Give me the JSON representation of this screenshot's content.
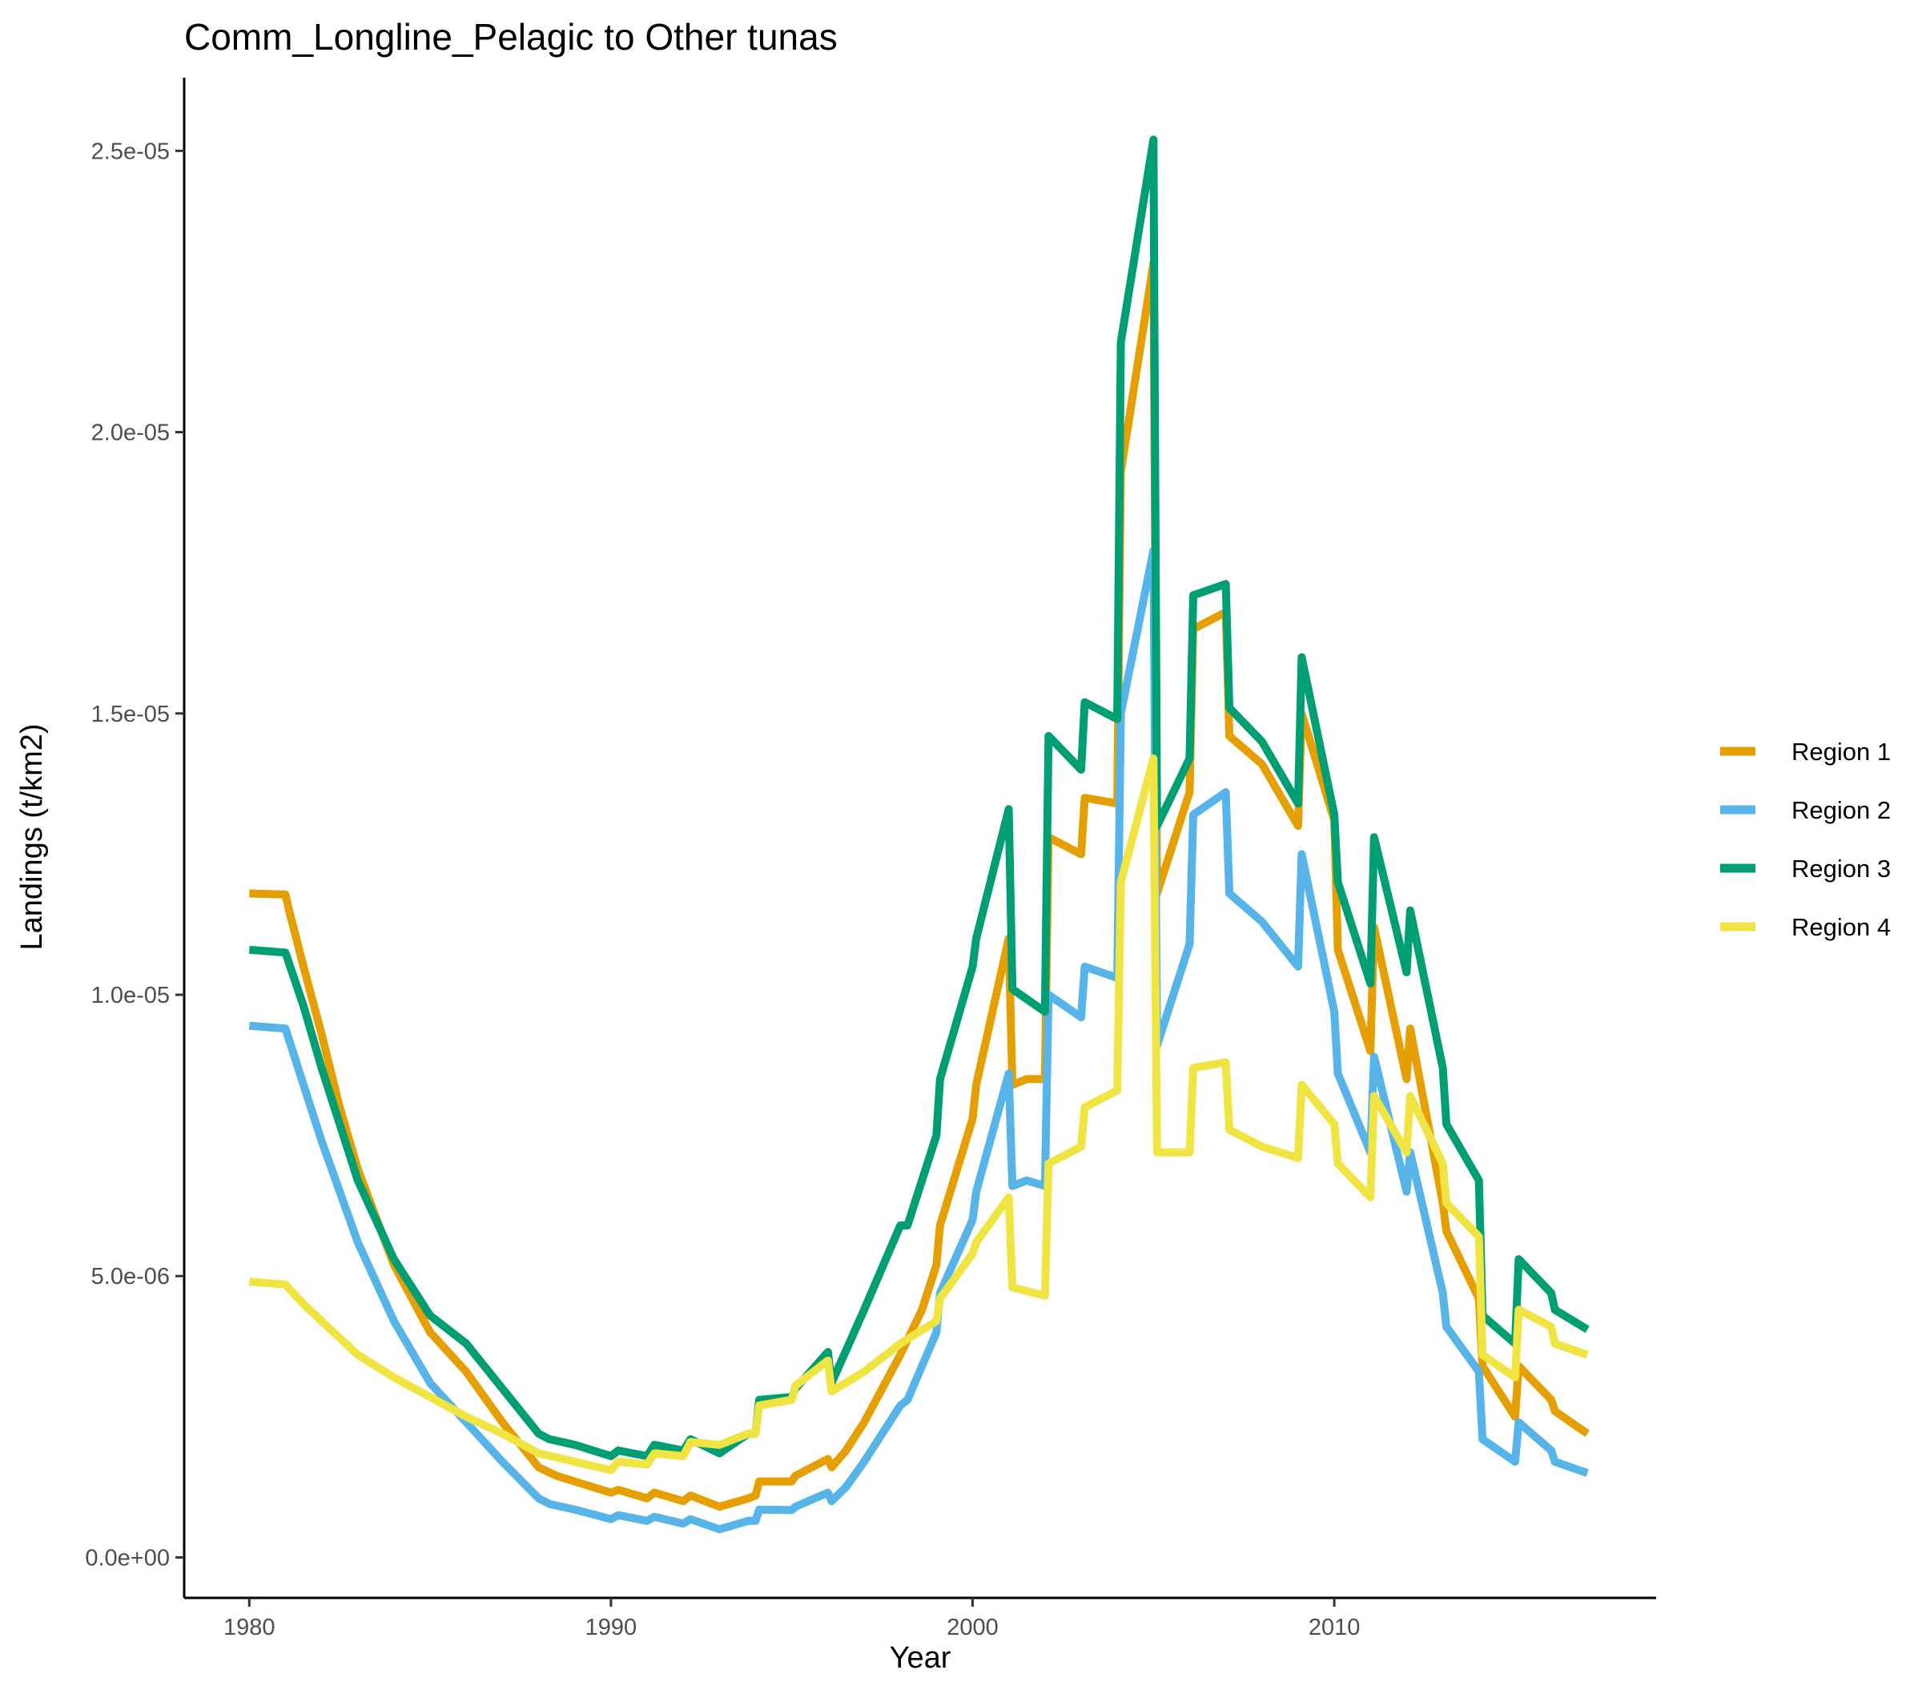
{
  "chart_data": {
    "type": "line",
    "title": "Comm_Longline_Pelagic to Other tunas",
    "xlabel": "Year",
    "ylabel": "Landings (t/km2)",
    "xlim": [
      1978.2,
      2018.9
    ],
    "ylim": [
      -7.2e-07,
      2.63e-05
    ],
    "x_ticks": [
      1980,
      1990,
      2000,
      2010
    ],
    "y_ticks": [
      0,
      5e-06,
      1e-05,
      1.5e-05,
      2e-05,
      2.5e-05
    ],
    "y_tick_labels": [
      "0.0e+00",
      "5.0e-06",
      "1.0e-05",
      "1.5e-05",
      "2.0e-05",
      "2.5e-05"
    ],
    "grid": false,
    "legend_position": "right",
    "x": [
      1980,
      1981,
      1982,
      1983,
      1984,
      1985,
      1986,
      1987,
      1988,
      1989,
      1990,
      1991,
      1992,
      1993,
      1994,
      1995,
      1996,
      1997,
      1998,
      1999,
      2000,
      2001,
      2002,
      2003,
      2004,
      2005,
      2006,
      2007,
      2008,
      2009,
      2010,
      2011,
      2012,
      2013,
      2014,
      2015,
      2016,
      2017
    ],
    "series": [
      {
        "name": "Region 1",
        "color": "#E69F00",
        "x": [
          1980,
          1981,
          1981.1,
          1981.5,
          1982,
          1982.5,
          1983,
          1984,
          1985,
          1986,
          1987,
          1988,
          1988.5,
          1989,
          1990,
          1990.2,
          1991,
          1991.2,
          1992,
          1992.2,
          1993,
          1993.8,
          1994,
          1994.1,
          1995,
          1995.1,
          1996,
          1996.1,
          1996.5,
          1997,
          1997.5,
          1998,
          1998.6,
          1999,
          1999.1,
          2000,
          2000.1,
          2001,
          2001.1,
          2001.5,
          2002,
          2002.1,
          2003,
          2003.1,
          2004,
          2004.1,
          2005,
          2005.1,
          2006,
          2006.1,
          2007,
          2007.1,
          2008,
          2009,
          2009.1,
          2010,
          2010.1,
          2011,
          2011.1,
          2012,
          2012.1,
          2013,
          2013.1,
          2014,
          2014.1,
          2015,
          2015.1,
          2016,
          2016.1,
          2017
        ],
        "values": [
          1.18e-05,
          1.178e-05,
          1.15e-05,
          1.05e-05,
          9.3e-06,
          8e-06,
          6.9e-06,
          5.2e-06,
          4e-06,
          3.3e-06,
          2.4e-06,
          1.6e-06,
          1.45e-06,
          1.35e-06,
          1.15e-06,
          1.2e-06,
          1.05e-06,
          1.15e-06,
          1e-06,
          1.1e-06,
          9e-07,
          1.05e-06,
          1.1e-06,
          1.35e-06,
          1.35e-06,
          1.45e-06,
          1.75e-06,
          1.6e-06,
          1.9e-06,
          2.4e-06,
          3e-06,
          3.6e-06,
          4.4e-06,
          5.2e-06,
          5.9e-06,
          7.8e-06,
          8.4e-06,
          1.1e-05,
          8.4e-06,
          8.5e-06,
          8.5e-06,
          1.28e-05,
          1.25e-05,
          1.35e-05,
          1.34e-05,
          1.93e-05,
          2.3e-05,
          1.18e-05,
          1.36e-05,
          1.65e-05,
          1.68e-05,
          1.46e-05,
          1.41e-05,
          1.3e-05,
          1.5e-05,
          1.31e-05,
          1.08e-05,
          9e-06,
          1.12e-05,
          8.5e-06,
          9.4e-06,
          6.3e-06,
          5.8e-06,
          4.6e-06,
          3.4e-06,
          2.5e-06,
          3.4e-06,
          2.8e-06,
          2.6e-06,
          2.2e-06
        ]
      },
      {
        "name": "Region 2",
        "color": "#56B4E9",
        "x": [
          1980,
          1981,
          1981.5,
          1982,
          1982.5,
          1983,
          1984,
          1985,
          1986,
          1987,
          1988,
          1988.3,
          1989,
          1990,
          1990.2,
          1991,
          1991.2,
          1992,
          1992.2,
          1993,
          1993.8,
          1994,
          1994.1,
          1995,
          1995.1,
          1996,
          1996.1,
          1996.5,
          1997,
          1997.5,
          1998,
          1998.2,
          1999,
          1999.1,
          2000,
          2000.1,
          2001,
          2001.1,
          2001.5,
          2002,
          2002.1,
          2003,
          2003.1,
          2004,
          2004.1,
          2005,
          2005.1,
          2006,
          2006.1,
          2007,
          2007.1,
          2008,
          2009,
          2009.1,
          2010,
          2010.1,
          2011,
          2011.1,
          2012,
          2012.1,
          2013,
          2013.1,
          2014,
          2014.1,
          2015,
          2015.1,
          2016,
          2016.1,
          2017
        ],
        "values": [
          9.45e-06,
          9.4e-06,
          8.4e-06,
          7.4e-06,
          6.5e-06,
          5.6e-06,
          4.2e-06,
          3.1e-06,
          2.4e-06,
          1.7e-06,
          1.05e-06,
          9.5e-07,
          8.5e-07,
          6.8e-07,
          7.5e-07,
          6.5e-07,
          7.2e-07,
          6e-07,
          6.8e-07,
          5e-07,
          6.5e-07,
          6.5e-07,
          8.5e-07,
          8.4e-07,
          9e-07,
          1.15e-06,
          1e-06,
          1.25e-06,
          1.7e-06,
          2.2e-06,
          2.7e-06,
          2.8e-06,
          4e-06,
          4.7e-06,
          6e-06,
          6.5e-06,
          8.6e-06,
          6.6e-06,
          6.7e-06,
          6.6e-06,
          1e-05,
          9.6e-06,
          1.05e-05,
          1.03e-05,
          1.5e-05,
          1.79e-05,
          9.1e-06,
          1.09e-05,
          1.32e-05,
          1.36e-05,
          1.18e-05,
          1.13e-05,
          1.05e-05,
          1.25e-05,
          9.7e-06,
          8.6e-06,
          7.2e-06,
          8.9e-06,
          6.5e-06,
          7.2e-06,
          4.7e-06,
          4.1e-06,
          3.3e-06,
          2.1e-06,
          1.7e-06,
          2.4e-06,
          1.9e-06,
          1.7e-06,
          1.5e-06
        ]
      },
      {
        "name": "Region 3",
        "color": "#009E73",
        "x": [
          1980,
          1981,
          1981.5,
          1982,
          1982.5,
          1983,
          1984,
          1985,
          1986,
          1987,
          1988,
          1988.3,
          1989,
          1990,
          1990.2,
          1991,
          1991.2,
          1992,
          1992.2,
          1993,
          1993.8,
          1994,
          1994.1,
          1995,
          1995.1,
          1996,
          1996.1,
          1997,
          1998,
          1998.2,
          1999,
          1999.1,
          2000,
          2000.1,
          2001,
          2001.1,
          2002,
          2002.1,
          2003,
          2003.1,
          2004,
          2004.1,
          2005,
          2005.1,
          2006,
          2006.1,
          2007,
          2007.1,
          2008,
          2009,
          2009.1,
          2010,
          2010.1,
          2011,
          2011.1,
          2012,
          2012.1,
          2013,
          2013.1,
          2014,
          2014.1,
          2015,
          2015.1,
          2016,
          2016.1,
          2017
        ],
        "values": [
          1.08e-05,
          1.075e-05,
          9.8e-06,
          8.7e-06,
          7.7e-06,
          6.7e-06,
          5.3e-06,
          4.3e-06,
          3.8e-06,
          3e-06,
          2.2e-06,
          2.1e-06,
          2e-06,
          1.8e-06,
          1.9e-06,
          1.8e-06,
          2e-06,
          1.9e-06,
          2.1e-06,
          1.85e-06,
          2.2e-06,
          2.2e-06,
          2.8e-06,
          2.85e-06,
          3e-06,
          3.65e-06,
          3.1e-06,
          4.4e-06,
          5.9e-06,
          5.9e-06,
          7.5e-06,
          8.5e-06,
          1.05e-05,
          1.1e-05,
          1.33e-05,
          1.01e-05,
          9.7e-06,
          1.46e-05,
          1.4e-05,
          1.52e-05,
          1.49e-05,
          2.16e-05,
          2.52e-05,
          1.3e-05,
          1.42e-05,
          1.71e-05,
          1.73e-05,
          1.51e-05,
          1.45e-05,
          1.34e-05,
          1.6e-05,
          1.32e-05,
          1.2e-05,
          1.02e-05,
          1.28e-05,
          1.04e-05,
          1.15e-05,
          8.7e-06,
          7.7e-06,
          6.7e-06,
          4.3e-06,
          3.8e-06,
          5.3e-06,
          4.7e-06,
          4.4e-06,
          4.05e-06
        ]
      },
      {
        "name": "Region 4",
        "color": "#F0E442",
        "x": [
          1980,
          1981,
          1981.5,
          1982,
          1983,
          1984,
          1985,
          1986,
          1987,
          1988,
          1989,
          1990,
          1990.2,
          1991,
          1991.2,
          1992,
          1992.2,
          1993,
          1993.8,
          1994,
          1994.1,
          1995,
          1995.1,
          1996,
          1996.1,
          1997,
          1998,
          1999,
          1999.1,
          2000,
          2000.1,
          2001,
          2001.1,
          2002,
          2002.1,
          2003,
          2003.1,
          2004,
          2004.1,
          2005,
          2005.1,
          2006,
          2006.1,
          2007,
          2007.1,
          2008,
          2009,
          2009.1,
          2010,
          2010.1,
          2011,
          2011.1,
          2012,
          2012.1,
          2013,
          2013.1,
          2014,
          2014.1,
          2015,
          2015.1,
          2016,
          2016.1,
          2017
        ],
        "values": [
          4.9e-06,
          4.85e-06,
          4.5e-06,
          4.2e-06,
          3.6e-06,
          3.2e-06,
          2.85e-06,
          2.5e-06,
          2.2e-06,
          1.85e-06,
          1.7e-06,
          1.55e-06,
          1.7e-06,
          1.65e-06,
          1.85e-06,
          1.8e-06,
          2.05e-06,
          2e-06,
          2.2e-06,
          2.2e-06,
          2.7e-06,
          2.8e-06,
          3.05e-06,
          3.5e-06,
          2.95e-06,
          3.3e-06,
          3.8e-06,
          4.2e-06,
          4.6e-06,
          5.4e-06,
          5.6e-06,
          6.4e-06,
          4.8e-06,
          4.65e-06,
          7e-06,
          7.3e-06,
          8e-06,
          8.3e-06,
          1.2e-05,
          1.42e-05,
          7.2e-06,
          7.2e-06,
          8.7e-06,
          8.8e-06,
          7.6e-06,
          7.3e-06,
          7.1e-06,
          8.4e-06,
          7.7e-06,
          7e-06,
          6.4e-06,
          8.2e-06,
          7.2e-06,
          8.2e-06,
          7e-06,
          6.3e-06,
          5.7e-06,
          3.6e-06,
          3.2e-06,
          4.4e-06,
          4.1e-06,
          3.8e-06,
          3.6e-06
        ]
      }
    ]
  }
}
